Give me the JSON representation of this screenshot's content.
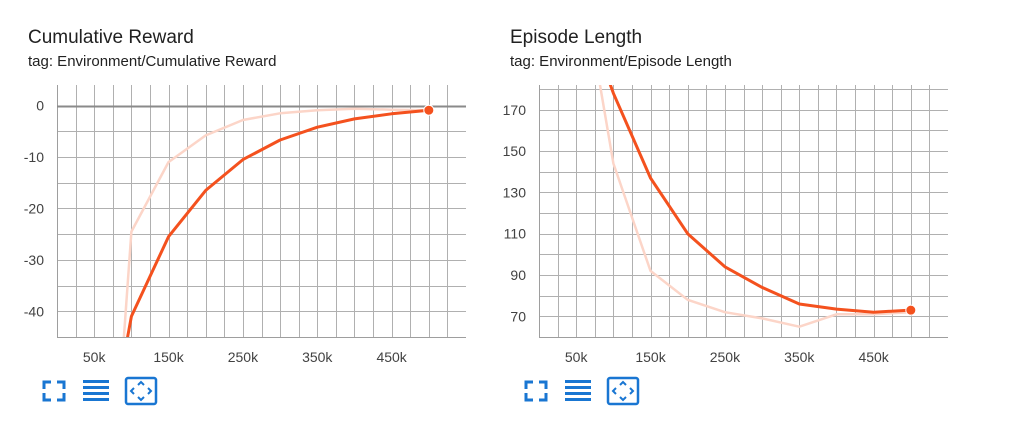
{
  "charts": [
    {
      "title": "Cumulative Reward",
      "tag": "tag: Environment/Cumulative Reward"
    },
    {
      "title": "Episode Length",
      "tag": "tag: Environment/Episode Length"
    }
  ],
  "toolbar": {
    "icons": [
      "fullscreen-icon",
      "data-table-icon",
      "fit-domain-icon"
    ]
  },
  "colors": {
    "smoothed": "#f4511e",
    "raw": "#fcd5c8",
    "grid": "#b0b0b0",
    "zero_line": "#8a8a8a",
    "axis": "#9e9e9e",
    "toolbar": "#1976d2"
  },
  "chart_data": [
    {
      "type": "line",
      "title": "Cumulative Reward",
      "subtitle": "tag: Environment/Cumulative Reward",
      "xlabel": "",
      "ylabel": "",
      "xlim": [
        0,
        550000
      ],
      "ylim": [
        -45,
        4
      ],
      "x_ticks": [
        50000,
        150000,
        250000,
        350000,
        450000
      ],
      "x_tick_labels": [
        "50k",
        "150k",
        "250k",
        "350k",
        "450k"
      ],
      "y_ticks": [
        0,
        -10,
        -20,
        -30,
        -40
      ],
      "y_tick_labels": [
        "0",
        "-10",
        "-20",
        "-30",
        "-40"
      ],
      "grid": true,
      "series": [
        {
          "role": "raw",
          "x": [
            90000,
            100000,
            150000,
            200000,
            250000,
            300000,
            350000,
            400000,
            450000,
            500000
          ],
          "values": [
            -45,
            -24.5,
            -11,
            -5.8,
            -2.8,
            -1.5,
            -0.9,
            -0.6,
            -0.8,
            -0.9
          ]
        },
        {
          "role": "smoothed",
          "x": [
            95000,
            100000,
            150000,
            200000,
            250000,
            300000,
            350000,
            400000,
            450000,
            500000
          ],
          "values": [
            -45,
            -41,
            -25.5,
            -16.5,
            -10.5,
            -6.7,
            -4.2,
            -2.6,
            -1.6,
            -0.9
          ]
        }
      ]
    },
    {
      "type": "line",
      "title": "Episode Length",
      "subtitle": "tag: Environment/Episode Length",
      "xlabel": "",
      "ylabel": "",
      "xlim": [
        0,
        550000
      ],
      "ylim": [
        60,
        182
      ],
      "x_ticks": [
        50000,
        150000,
        250000,
        350000,
        450000
      ],
      "x_tick_labels": [
        "50k",
        "150k",
        "250k",
        "350k",
        "450k"
      ],
      "y_ticks": [
        70,
        90,
        110,
        130,
        150,
        170
      ],
      "y_tick_labels": [
        "70",
        "90",
        "110",
        "130",
        "150",
        "170"
      ],
      "grid": true,
      "series": [
        {
          "role": "raw",
          "x": [
            82000,
            100000,
            150000,
            200000,
            250000,
            300000,
            350000,
            400000,
            450000,
            500000
          ],
          "values": [
            182,
            144,
            92,
            78,
            72,
            69,
            65,
            71,
            71,
            72
          ]
        },
        {
          "role": "smoothed",
          "x": [
            96000,
            100000,
            150000,
            200000,
            250000,
            300000,
            350000,
            400000,
            450000,
            500000
          ],
          "values": [
            182,
            178,
            137,
            110,
            94,
            84,
            76,
            73.5,
            72,
            73
          ]
        }
      ]
    }
  ]
}
